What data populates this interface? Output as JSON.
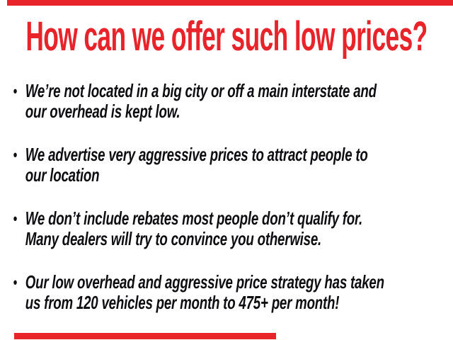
{
  "colors": {
    "background": "#ffffff",
    "accent_red": "#e8232a",
    "text_black": "#0e0e12"
  },
  "title": "How can we offer such low prices?",
  "bullet_marker": "•",
  "bullets": [
    {
      "text": "We’re not located in a big city or off a main interstate and\nour overhead is kept low."
    },
    {
      "text": "We advertise very aggressive prices to attract people to\nour location"
    },
    {
      "text": "We don’t include rebates most people don’t qualify for.\nMany dealers will try to convince you otherwise."
    },
    {
      "text": "Our low overhead and aggressive price strategy has taken\nus from 120 vehicles per month to 475+ per month!"
    }
  ]
}
